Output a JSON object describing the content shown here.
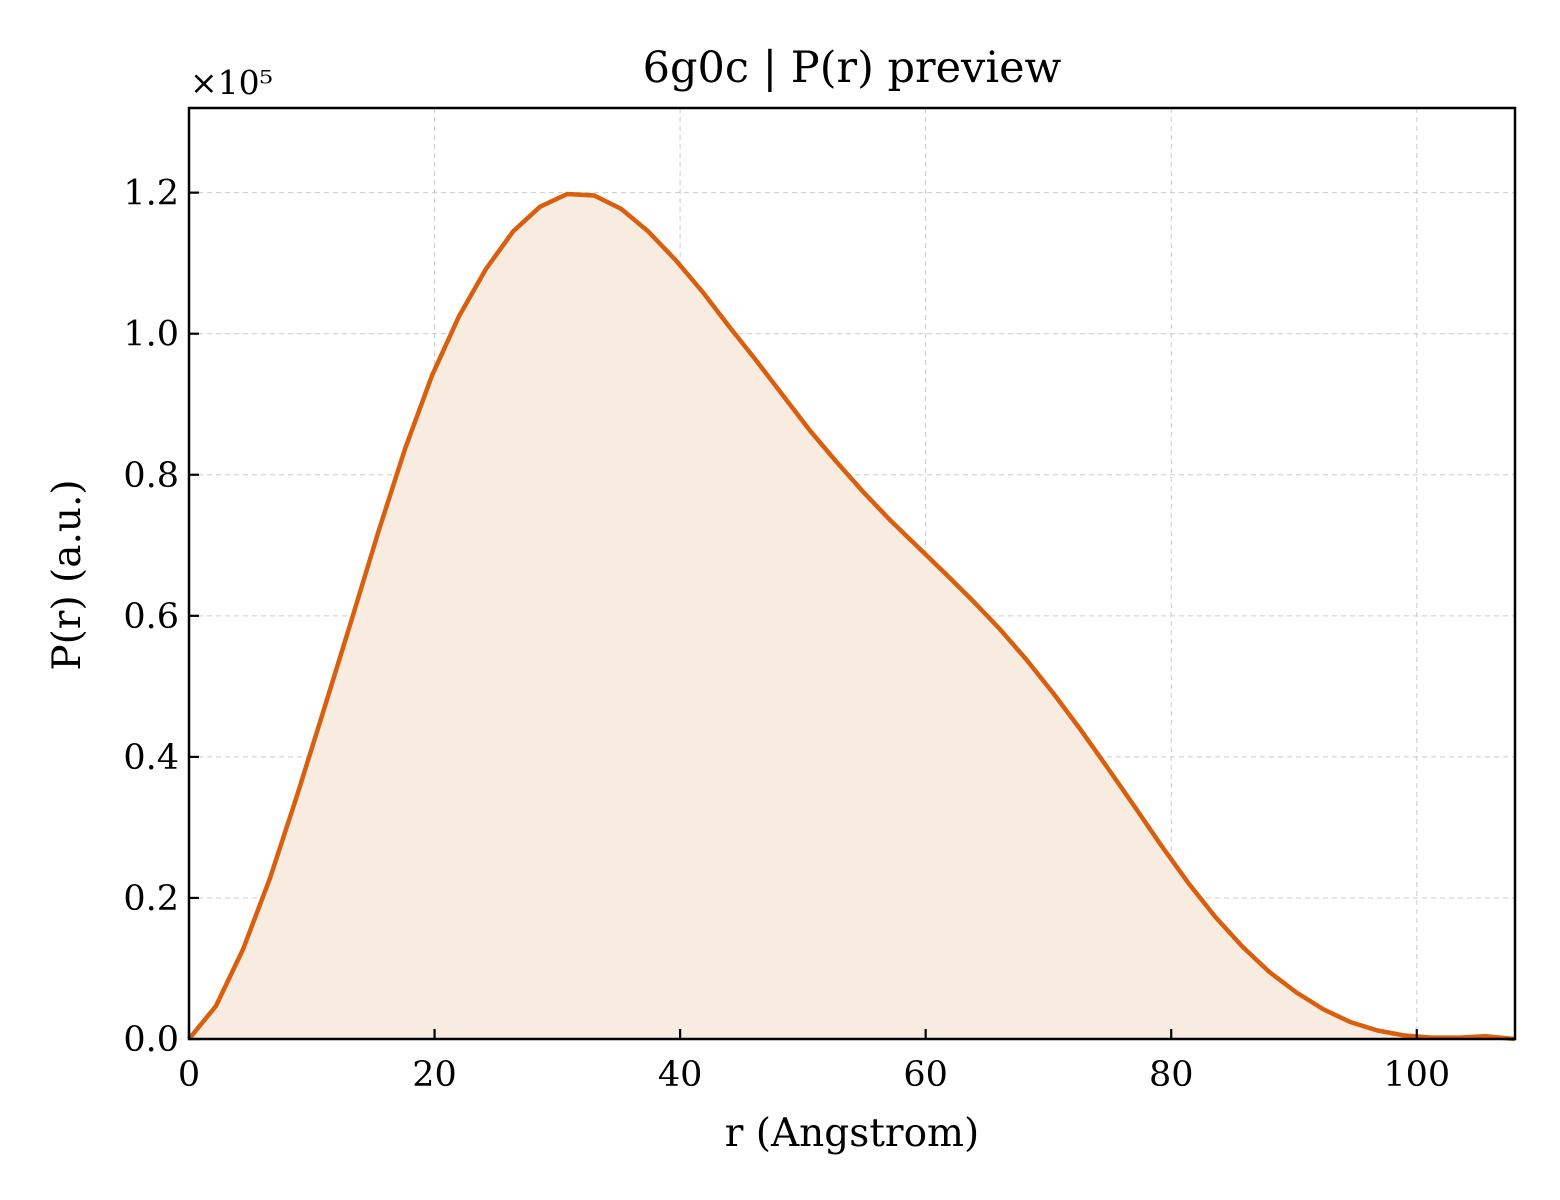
{
  "chart_data": {
    "type": "area",
    "title": "6g0c | P(r) preview",
    "xlabel": "r (Angstrom)",
    "ylabel": "P(r) (a.u.)",
    "y_scale_note": "×10⁵",
    "xlim": [
      0,
      108
    ],
    "ylim": [
      0,
      1.32
    ],
    "x_ticks": [
      "0",
      "20",
      "40",
      "60",
      "80",
      "100"
    ],
    "y_ticks": [
      "0.0",
      "0.2",
      "0.4",
      "0.6",
      "0.8",
      "1.0",
      "1.2"
    ],
    "grid": true,
    "line_color": "#d95f0e",
    "fill_color": "#f8ebe0",
    "series": [
      {
        "x": [
          0,
          2.2,
          4.4,
          6.6,
          8.8,
          11.0,
          13.2,
          15.4,
          17.6,
          19.8,
          22.0,
          24.2,
          26.4,
          28.6,
          30.8,
          33.0,
          35.2,
          37.4,
          39.6,
          41.8,
          44.0,
          46.2,
          48.4,
          50.6,
          52.8,
          55.0,
          57.2,
          59.4,
          61.6,
          63.8,
          66.0,
          68.2,
          70.4,
          72.6,
          74.8,
          77.0,
          79.2,
          81.4,
          83.6,
          85.8,
          88.0,
          90.2,
          92.4,
          94.6,
          96.8,
          99.0,
          101.2,
          103.4,
          105.6,
          108.0
        ],
        "y": [
          0.0,
          0.047,
          0.127,
          0.228,
          0.345,
          0.468,
          0.592,
          0.718,
          0.837,
          0.941,
          1.025,
          1.092,
          1.145,
          1.18,
          1.198,
          1.196,
          1.177,
          1.145,
          1.105,
          1.06,
          1.01,
          0.962,
          0.912,
          0.862,
          0.817,
          0.774,
          0.734,
          0.697,
          0.66,
          0.622,
          0.582,
          0.538,
          0.49,
          0.439,
          0.385,
          0.33,
          0.274,
          0.221,
          0.173,
          0.131,
          0.095,
          0.066,
          0.042,
          0.024,
          0.012,
          0.005,
          0.002,
          0.002,
          0.004,
          0.0
        ]
      }
    ]
  }
}
